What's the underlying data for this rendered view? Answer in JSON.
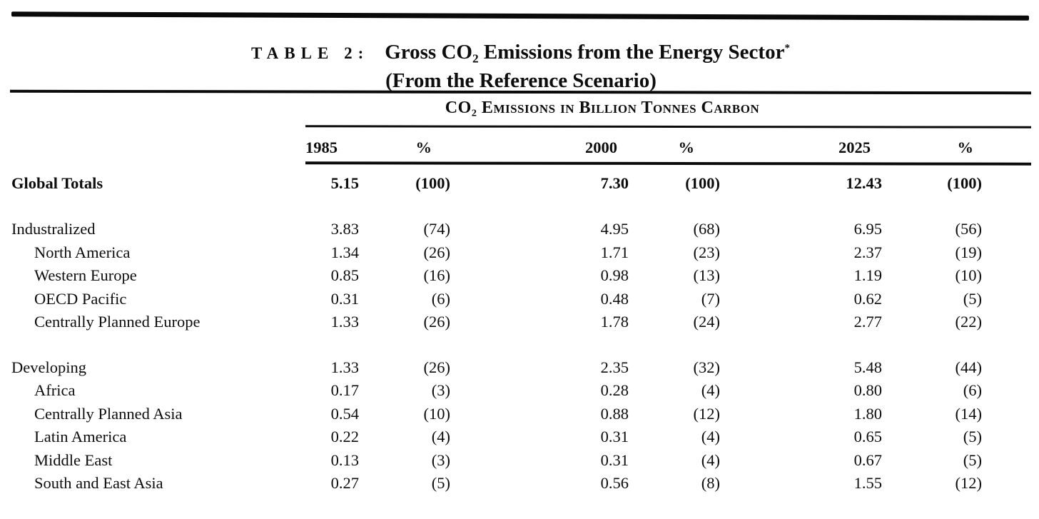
{
  "document": {
    "table_label": "TABLE 2:",
    "title": "Gross CO₂ Emissions from the Energy Sector",
    "title_note": "*",
    "subtitle": "(From the Reference Scenario)",
    "unit_header": "CO₂ Emissions in Billion Tonnes Carbon",
    "columns": [
      "1985",
      "%",
      "2000",
      "%",
      "2025",
      "%"
    ],
    "rows": [
      {
        "label": "Global Totals",
        "style": "total",
        "values": [
          "5.15",
          "(100)",
          "7.30",
          "(100)",
          "12.43",
          "(100)"
        ]
      },
      {
        "label": "Industralized",
        "style": "section",
        "values": [
          "3.83",
          "(74)",
          "4.95",
          "(68)",
          "6.95",
          "(56)"
        ]
      },
      {
        "label": "North America",
        "style": "sub",
        "values": [
          "1.34",
          "(26)",
          "1.71",
          "(23)",
          "2.37",
          "(19)"
        ]
      },
      {
        "label": "Western Europe",
        "style": "sub",
        "values": [
          "0.85",
          "(16)",
          "0.98",
          "(13)",
          "1.19",
          "(10)"
        ]
      },
      {
        "label": "OECD Pacific",
        "style": "sub",
        "values": [
          "0.31",
          "(6)",
          "0.48",
          "(7)",
          "0.62",
          "(5)"
        ]
      },
      {
        "label": "Centrally Planned Europe",
        "style": "sub",
        "values": [
          "1.33",
          "(26)",
          "1.78",
          "(24)",
          "2.77",
          "(22)"
        ]
      },
      {
        "label": "Developing",
        "style": "section",
        "values": [
          "1.33",
          "(26)",
          "2.35",
          "(32)",
          "5.48",
          "(44)"
        ]
      },
      {
        "label": "Africa",
        "style": "sub",
        "values": [
          "0.17",
          "(3)",
          "0.28",
          "(4)",
          "0.80",
          "(6)"
        ]
      },
      {
        "label": "Centrally Planned Asia",
        "style": "sub",
        "values": [
          "0.54",
          "(10)",
          "0.88",
          "(12)",
          "1.80",
          "(14)"
        ]
      },
      {
        "label": "Latin America",
        "style": "sub",
        "values": [
          "0.22",
          "(4)",
          "0.31",
          "(4)",
          "0.65",
          "(5)"
        ]
      },
      {
        "label": "Middle East",
        "style": "sub",
        "values": [
          "0.13",
          "(3)",
          "0.31",
          "(4)",
          "0.67",
          "(5)"
        ]
      },
      {
        "label": "South and East Asia",
        "style": "sub",
        "values": [
          "0.27",
          "(5)",
          "0.56",
          "(8)",
          "1.55",
          "(12)"
        ]
      }
    ]
  }
}
